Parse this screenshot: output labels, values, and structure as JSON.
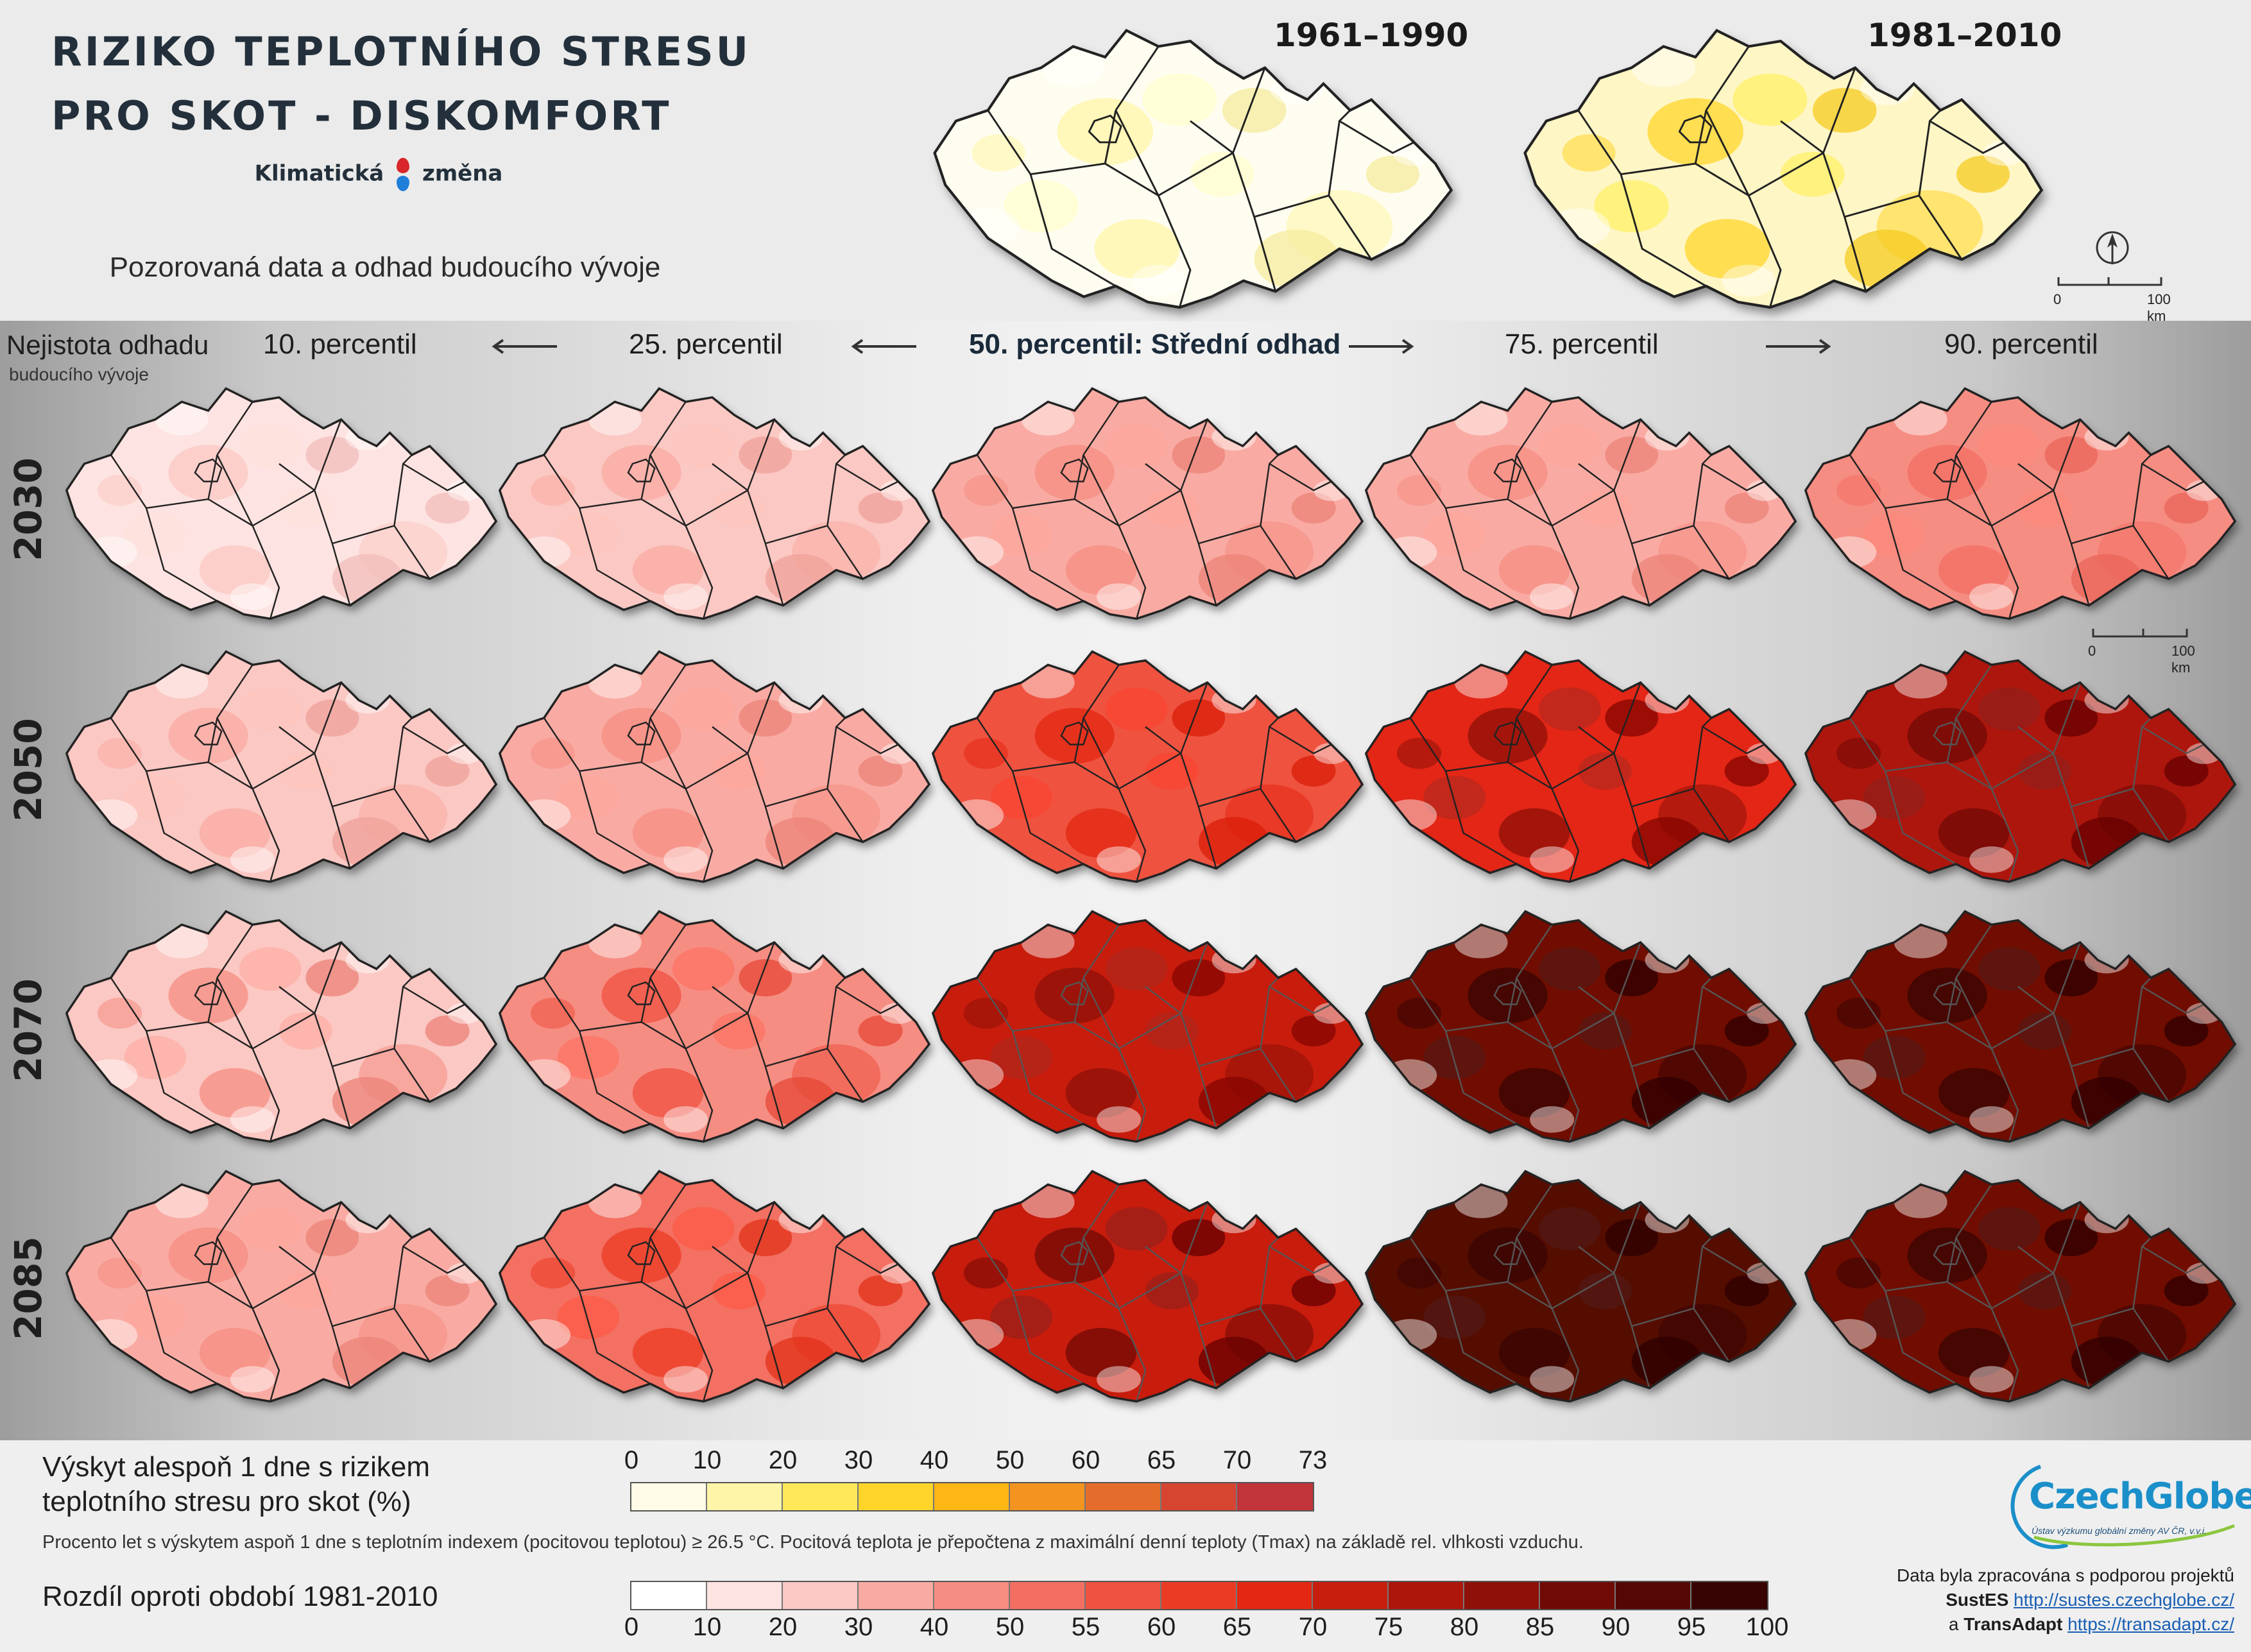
{
  "header": {
    "title_line1": "RIZIKO TEPLOTNÍHO STRESU",
    "title_line2": "PRO SKOT - DISKOMFORT",
    "brand_left": "Klimatická",
    "brand_right": "změna",
    "subtitle": "Pozorovaná data a odhad budoucího vývoje"
  },
  "observed_maps": [
    {
      "period": "1961–1990",
      "intensity": 0.12,
      "palette": "yellow"
    },
    {
      "period": "1981–2010",
      "intensity": 0.42,
      "palette": "yellow"
    }
  ],
  "scale_bar": {
    "start": "0",
    "end": "100 km"
  },
  "uncertainty_label": {
    "line1": "Nejistota odhadu",
    "line2": "budoucího vývoje"
  },
  "percentiles": [
    "10. percentil",
    "25. percentil",
    "50. percentil: Střední odhad",
    "75. percentil",
    "90. percentil"
  ],
  "years": [
    "2030",
    "2050",
    "2070",
    "2085"
  ],
  "scenario_grid": {
    "description_levels": "dominant change class per map (% points vs 1981-2010)",
    "rows": [
      {
        "year": "2030",
        "levels": [
          17,
          22,
          30,
          36,
          42
        ]
      },
      {
        "year": "2050",
        "levels": [
          24,
          32,
          55,
          68,
          75
        ]
      },
      {
        "year": "2070",
        "levels": [
          28,
          45,
          72,
          88,
          85
        ]
      },
      {
        "year": "2085",
        "levels": [
          30,
          50,
          74,
          90,
          86
        ]
      }
    ]
  },
  "legend_occurrence": {
    "title_line1": "Výskyt alespoň 1 dne s rizikem",
    "title_line2": "teplotního stresu pro skot (%)",
    "ticks": [
      "0",
      "10",
      "20",
      "30",
      "40",
      "50",
      "60",
      "65",
      "70",
      "73"
    ],
    "colors": [
      "#fffbe6",
      "#fff5a8",
      "#ffe95a",
      "#ffd52a",
      "#fdb614",
      "#f39420",
      "#e56d2b",
      "#d6452f",
      "#c1343a"
    ]
  },
  "legend_note": "Procento let s výskytem aspoň 1 dne s teplotním indexem (pocitovou teplotou) ≥ 26.5 °C. Pocitová teplota je přepočtena z maximální denní teploty (Tmax) na základě rel. vlhkosti vzduchu.",
  "legend_difference": {
    "title": "Rozdíl oproti období 1981-2010",
    "ticks": [
      "0",
      "10",
      "20",
      "30",
      "40",
      "50",
      "55",
      "60",
      "65",
      "70",
      "75",
      "80",
      "85",
      "90",
      "95",
      "100"
    ],
    "colors": [
      "#ffffff",
      "#fde3e1",
      "#fbc8c3",
      "#f9aba3",
      "#f68d82",
      "#f36f62",
      "#ef5240",
      "#ec3b24",
      "#e32712",
      "#c81e0d",
      "#ad160b",
      "#8e1008",
      "#700a06",
      "#540705",
      "#380403"
    ]
  },
  "logo": {
    "name_a": "Czech",
    "name_b": "Globe",
    "tagline": "Ústav výzkumu globální změny AV ČR, v.v.i."
  },
  "credits": {
    "line1": "Data byla zpracována s podporou projektů",
    "proj1": "SustES",
    "link1": "http://sustes.czechglobe.cz/",
    "conj": "a",
    "proj2": "TransAdapt",
    "link2": "https://transadapt.cz/"
  }
}
